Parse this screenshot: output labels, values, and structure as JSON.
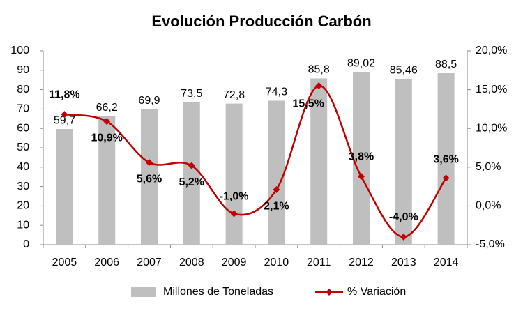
{
  "chart_data": {
    "type": "bar-line",
    "title": "Evolución Producción Carbón",
    "categories": [
      "2005",
      "2006",
      "2007",
      "2008",
      "2009",
      "2010",
      "2011",
      "2012",
      "2013",
      "2014"
    ],
    "series": [
      {
        "name": "Millones de Toneladas",
        "type": "bar",
        "color": "#bfbfbf",
        "values": [
          59.7,
          66.2,
          69.9,
          73.5,
          72.8,
          74.3,
          85.8,
          89.02,
          85.46,
          88.5
        ],
        "value_labels": [
          "59,7",
          "66,2",
          "69,9",
          "73,5",
          "72,8",
          "74,3",
          "85,8",
          "89,02",
          "85,46",
          "88,5"
        ]
      },
      {
        "name": "% Variación",
        "type": "line",
        "axis": "y2",
        "color": "#c00000",
        "values": [
          11.8,
          10.9,
          5.6,
          5.2,
          -1.0,
          2.1,
          15.5,
          3.8,
          -4.0,
          3.6
        ],
        "value_labels": [
          "11,8%",
          "10,9%",
          "5,6%",
          "5,2%",
          "-1,0%",
          "2,1%",
          "15,5%",
          "3,8%",
          "-4,0%",
          "3,6%"
        ]
      }
    ],
    "ylim": [
      0,
      100
    ],
    "yticks": [
      0,
      10,
      20,
      30,
      40,
      50,
      60,
      70,
      80,
      90,
      100
    ],
    "y2lim": [
      -5,
      20
    ],
    "y2ticks": [
      {
        "value": -5,
        "label": "-5,0%"
      },
      {
        "value": 0,
        "label": "0,0%"
      },
      {
        "value": 5,
        "label": "5,0%"
      },
      {
        "value": 10,
        "label": "10,0%"
      },
      {
        "value": 15,
        "label": "15,0%"
      },
      {
        "value": 20,
        "label": "20,0%"
      }
    ],
    "legend": "bottom"
  }
}
